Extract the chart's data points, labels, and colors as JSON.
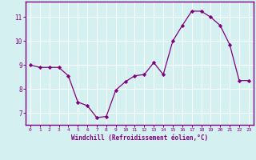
{
  "x": [
    0,
    1,
    2,
    3,
    4,
    5,
    6,
    7,
    8,
    9,
    10,
    11,
    12,
    13,
    14,
    15,
    16,
    17,
    18,
    19,
    20,
    21,
    22,
    23
  ],
  "y": [
    9.0,
    8.9,
    8.9,
    8.9,
    8.55,
    7.45,
    7.3,
    6.8,
    6.85,
    7.95,
    8.3,
    8.55,
    8.6,
    9.1,
    8.6,
    10.0,
    10.65,
    11.25,
    11.25,
    11.0,
    10.65,
    9.85,
    8.35,
    8.35
  ],
  "line_color": "#800080",
  "marker": "D",
  "marker_size": 2.2,
  "bg_color": "#d5f0f0",
  "grid_color": "#ffffff",
  "xlabel": "Windchill (Refroidissement éolien,°C)",
  "xlabel_color": "#800080",
  "tick_color": "#800080",
  "ylabel_ticks": [
    7,
    8,
    9,
    10,
    11
  ],
  "xtick_labels": [
    "0",
    "1",
    "2",
    "3",
    "4",
    "5",
    "6",
    "7",
    "8",
    "9",
    "10",
    "11",
    "12",
    "13",
    "14",
    "15",
    "16",
    "17",
    "18",
    "19",
    "20",
    "21",
    "22",
    "23"
  ],
  "ylim": [
    6.5,
    11.65
  ],
  "xlim": [
    -0.5,
    23.5
  ]
}
